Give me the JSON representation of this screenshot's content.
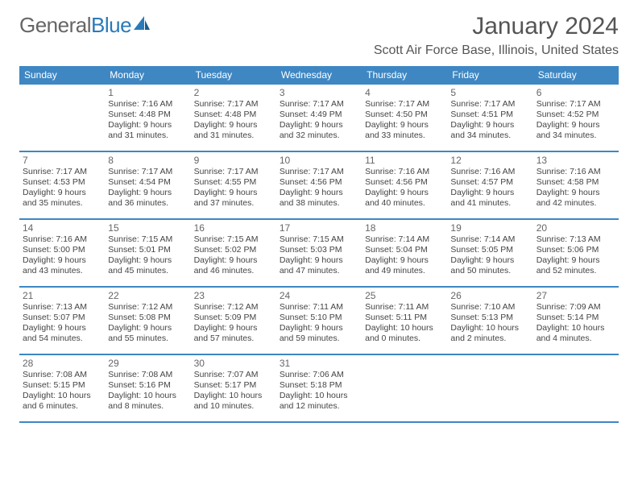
{
  "logo": {
    "text1": "General",
    "text2": "Blue"
  },
  "title": "January 2024",
  "location": "Scott Air Force Base, Illinois, United States",
  "headers": [
    "Sunday",
    "Monday",
    "Tuesday",
    "Wednesday",
    "Thursday",
    "Friday",
    "Saturday"
  ],
  "colors": {
    "header_bg": "#3e87c3",
    "header_text": "#ffffff",
    "text": "#444444",
    "logo_blue": "#2a7ab9"
  },
  "weeks": [
    [
      {
        "num": "",
        "lines": []
      },
      {
        "num": "1",
        "lines": [
          "Sunrise: 7:16 AM",
          "Sunset: 4:48 PM",
          "Daylight: 9 hours",
          "and 31 minutes."
        ]
      },
      {
        "num": "2",
        "lines": [
          "Sunrise: 7:17 AM",
          "Sunset: 4:48 PM",
          "Daylight: 9 hours",
          "and 31 minutes."
        ]
      },
      {
        "num": "3",
        "lines": [
          "Sunrise: 7:17 AM",
          "Sunset: 4:49 PM",
          "Daylight: 9 hours",
          "and 32 minutes."
        ]
      },
      {
        "num": "4",
        "lines": [
          "Sunrise: 7:17 AM",
          "Sunset: 4:50 PM",
          "Daylight: 9 hours",
          "and 33 minutes."
        ]
      },
      {
        "num": "5",
        "lines": [
          "Sunrise: 7:17 AM",
          "Sunset: 4:51 PM",
          "Daylight: 9 hours",
          "and 34 minutes."
        ]
      },
      {
        "num": "6",
        "lines": [
          "Sunrise: 7:17 AM",
          "Sunset: 4:52 PM",
          "Daylight: 9 hours",
          "and 34 minutes."
        ]
      }
    ],
    [
      {
        "num": "7",
        "lines": [
          "Sunrise: 7:17 AM",
          "Sunset: 4:53 PM",
          "Daylight: 9 hours",
          "and 35 minutes."
        ]
      },
      {
        "num": "8",
        "lines": [
          "Sunrise: 7:17 AM",
          "Sunset: 4:54 PM",
          "Daylight: 9 hours",
          "and 36 minutes."
        ]
      },
      {
        "num": "9",
        "lines": [
          "Sunrise: 7:17 AM",
          "Sunset: 4:55 PM",
          "Daylight: 9 hours",
          "and 37 minutes."
        ]
      },
      {
        "num": "10",
        "lines": [
          "Sunrise: 7:17 AM",
          "Sunset: 4:56 PM",
          "Daylight: 9 hours",
          "and 38 minutes."
        ]
      },
      {
        "num": "11",
        "lines": [
          "Sunrise: 7:16 AM",
          "Sunset: 4:56 PM",
          "Daylight: 9 hours",
          "and 40 minutes."
        ]
      },
      {
        "num": "12",
        "lines": [
          "Sunrise: 7:16 AM",
          "Sunset: 4:57 PM",
          "Daylight: 9 hours",
          "and 41 minutes."
        ]
      },
      {
        "num": "13",
        "lines": [
          "Sunrise: 7:16 AM",
          "Sunset: 4:58 PM",
          "Daylight: 9 hours",
          "and 42 minutes."
        ]
      }
    ],
    [
      {
        "num": "14",
        "lines": [
          "Sunrise: 7:16 AM",
          "Sunset: 5:00 PM",
          "Daylight: 9 hours",
          "and 43 minutes."
        ]
      },
      {
        "num": "15",
        "lines": [
          "Sunrise: 7:15 AM",
          "Sunset: 5:01 PM",
          "Daylight: 9 hours",
          "and 45 minutes."
        ]
      },
      {
        "num": "16",
        "lines": [
          "Sunrise: 7:15 AM",
          "Sunset: 5:02 PM",
          "Daylight: 9 hours",
          "and 46 minutes."
        ]
      },
      {
        "num": "17",
        "lines": [
          "Sunrise: 7:15 AM",
          "Sunset: 5:03 PM",
          "Daylight: 9 hours",
          "and 47 minutes."
        ]
      },
      {
        "num": "18",
        "lines": [
          "Sunrise: 7:14 AM",
          "Sunset: 5:04 PM",
          "Daylight: 9 hours",
          "and 49 minutes."
        ]
      },
      {
        "num": "19",
        "lines": [
          "Sunrise: 7:14 AM",
          "Sunset: 5:05 PM",
          "Daylight: 9 hours",
          "and 50 minutes."
        ]
      },
      {
        "num": "20",
        "lines": [
          "Sunrise: 7:13 AM",
          "Sunset: 5:06 PM",
          "Daylight: 9 hours",
          "and 52 minutes."
        ]
      }
    ],
    [
      {
        "num": "21",
        "lines": [
          "Sunrise: 7:13 AM",
          "Sunset: 5:07 PM",
          "Daylight: 9 hours",
          "and 54 minutes."
        ]
      },
      {
        "num": "22",
        "lines": [
          "Sunrise: 7:12 AM",
          "Sunset: 5:08 PM",
          "Daylight: 9 hours",
          "and 55 minutes."
        ]
      },
      {
        "num": "23",
        "lines": [
          "Sunrise: 7:12 AM",
          "Sunset: 5:09 PM",
          "Daylight: 9 hours",
          "and 57 minutes."
        ]
      },
      {
        "num": "24",
        "lines": [
          "Sunrise: 7:11 AM",
          "Sunset: 5:10 PM",
          "Daylight: 9 hours",
          "and 59 minutes."
        ]
      },
      {
        "num": "25",
        "lines": [
          "Sunrise: 7:11 AM",
          "Sunset: 5:11 PM",
          "Daylight: 10 hours",
          "and 0 minutes."
        ]
      },
      {
        "num": "26",
        "lines": [
          "Sunrise: 7:10 AM",
          "Sunset: 5:13 PM",
          "Daylight: 10 hours",
          "and 2 minutes."
        ]
      },
      {
        "num": "27",
        "lines": [
          "Sunrise: 7:09 AM",
          "Sunset: 5:14 PM",
          "Daylight: 10 hours",
          "and 4 minutes."
        ]
      }
    ],
    [
      {
        "num": "28",
        "lines": [
          "Sunrise: 7:08 AM",
          "Sunset: 5:15 PM",
          "Daylight: 10 hours",
          "and 6 minutes."
        ]
      },
      {
        "num": "29",
        "lines": [
          "Sunrise: 7:08 AM",
          "Sunset: 5:16 PM",
          "Daylight: 10 hours",
          "and 8 minutes."
        ]
      },
      {
        "num": "30",
        "lines": [
          "Sunrise: 7:07 AM",
          "Sunset: 5:17 PM",
          "Daylight: 10 hours",
          "and 10 minutes."
        ]
      },
      {
        "num": "31",
        "lines": [
          "Sunrise: 7:06 AM",
          "Sunset: 5:18 PM",
          "Daylight: 10 hours",
          "and 12 minutes."
        ]
      },
      {
        "num": "",
        "lines": []
      },
      {
        "num": "",
        "lines": []
      },
      {
        "num": "",
        "lines": []
      }
    ]
  ]
}
